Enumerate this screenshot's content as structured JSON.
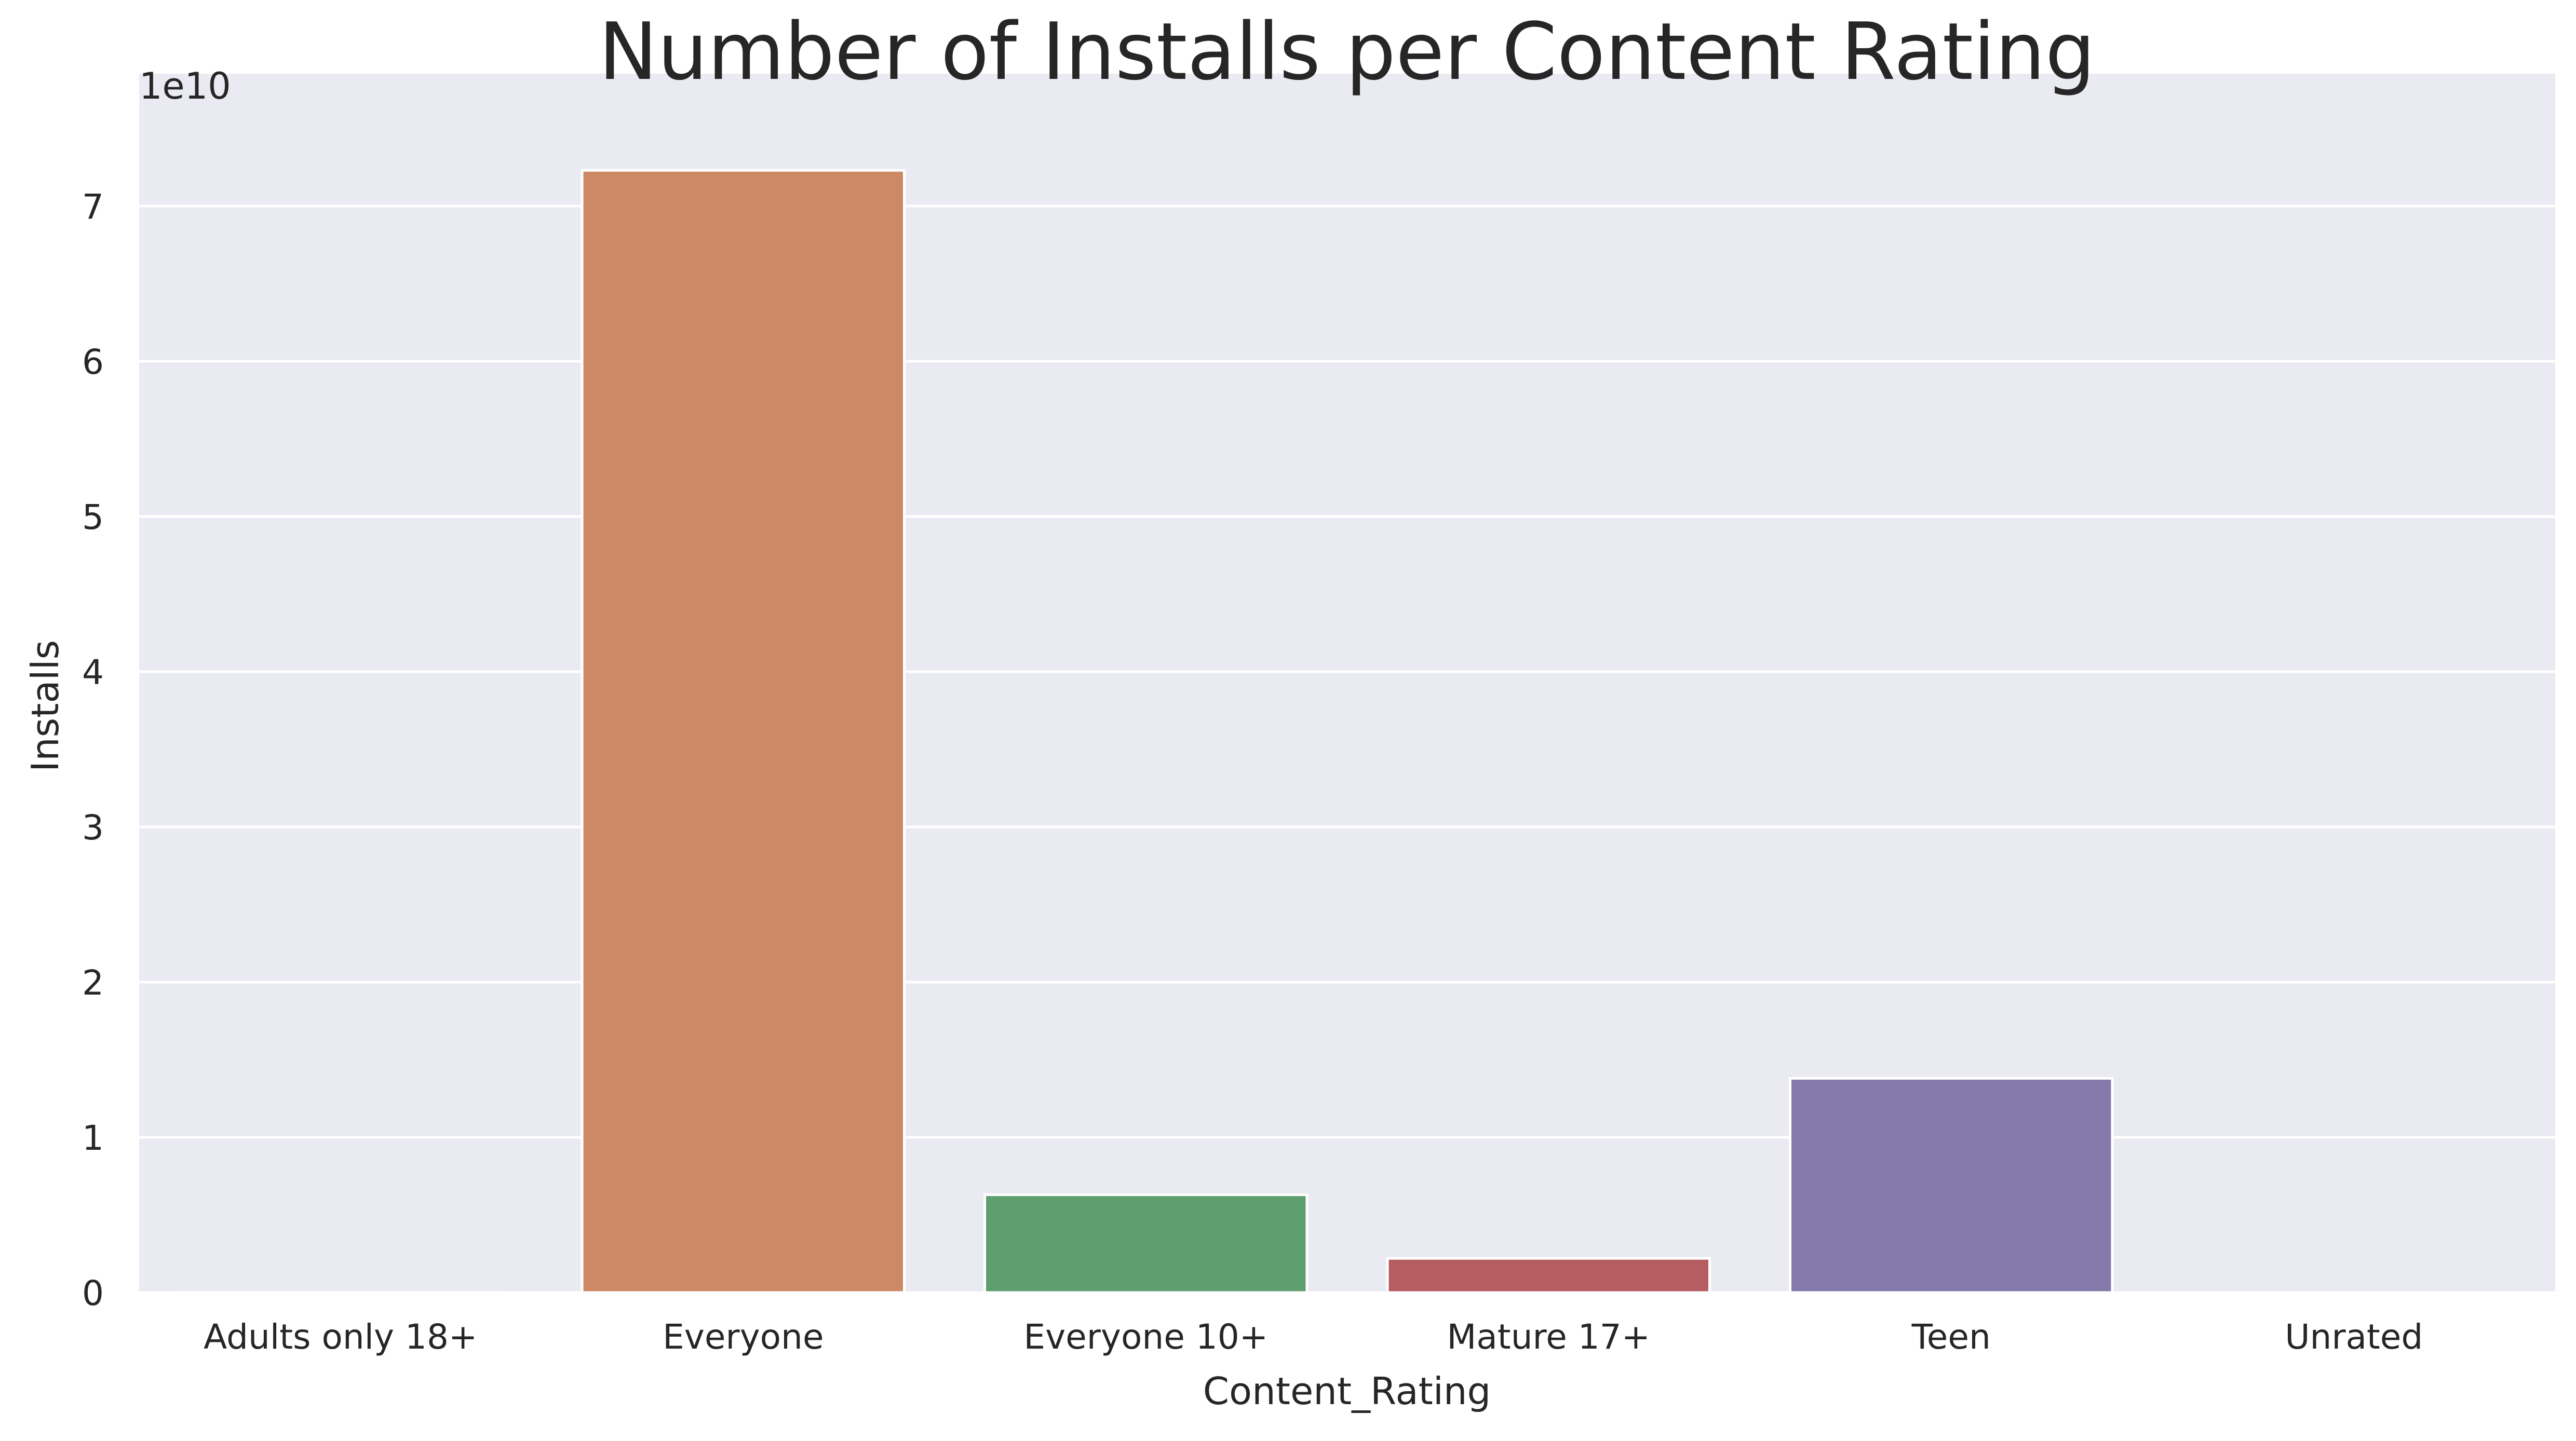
{
  "chart_data": {
    "type": "bar",
    "title": "Number of Installs per Content Rating",
    "xlabel": "Content_Rating",
    "ylabel": "Installs",
    "y_offset_label": "1e10",
    "y_scale": 10000000000,
    "categories": [
      "Adults only 18+",
      "Everyone",
      "Everyone 10+",
      "Mature 17+",
      "Teen",
      "Unrated"
    ],
    "values": [
      2000000,
      72300000000,
      6300000000,
      2200000000,
      13800000000,
      60000
    ],
    "colors": [
      "#3b6ea7",
      "#cc8963",
      "#5f9e6e",
      "#b55d60",
      "#857aab",
      "#8d7866"
    ],
    "ylim": [
      0,
      7.6
    ],
    "yticks": [
      0,
      1,
      2,
      3,
      4,
      5,
      6,
      7
    ],
    "grid": true,
    "background": "#eaeaf2"
  }
}
